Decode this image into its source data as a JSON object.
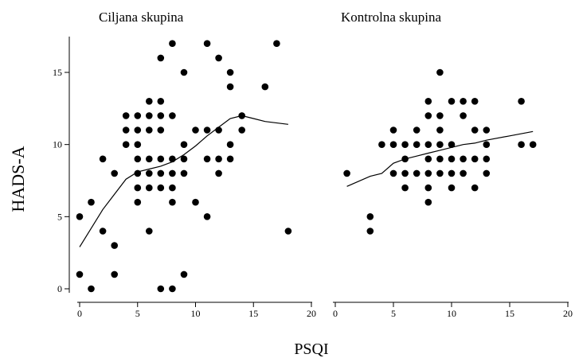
{
  "chart_data": [
    {
      "type": "scatter",
      "title": "Ciljana skupina",
      "xlabel": "PSQI",
      "ylabel": "HADS-A",
      "xlim": [
        0,
        20
      ],
      "ylim": [
        0,
        17
      ],
      "x_ticks": [
        0,
        5,
        10,
        15,
        20
      ],
      "y_ticks": [
        0,
        5,
        10,
        15
      ],
      "points": [
        [
          0,
          5
        ],
        [
          0,
          1
        ],
        [
          1,
          6
        ],
        [
          1,
          0
        ],
        [
          2,
          9
        ],
        [
          2,
          4
        ],
        [
          3,
          8
        ],
        [
          3,
          3
        ],
        [
          3,
          1
        ],
        [
          4,
          12
        ],
        [
          4,
          11
        ],
        [
          4,
          10
        ],
        [
          5,
          12
        ],
        [
          5,
          11
        ],
        [
          5,
          10
        ],
        [
          5,
          9
        ],
        [
          5,
          8
        ],
        [
          5,
          7
        ],
        [
          5,
          6
        ],
        [
          6,
          13
        ],
        [
          6,
          12
        ],
        [
          6,
          11
        ],
        [
          6,
          9
        ],
        [
          6,
          8
        ],
        [
          6,
          7
        ],
        [
          6,
          4
        ],
        [
          7,
          16
        ],
        [
          7,
          13
        ],
        [
          7,
          12
        ],
        [
          7,
          11
        ],
        [
          7,
          9
        ],
        [
          7,
          8
        ],
        [
          7,
          7
        ],
        [
          7,
          0
        ],
        [
          8,
          17
        ],
        [
          8,
          12
        ],
        [
          8,
          9
        ],
        [
          8,
          8
        ],
        [
          8,
          7
        ],
        [
          8,
          6
        ],
        [
          8,
          0
        ],
        [
          9,
          15
        ],
        [
          9,
          10
        ],
        [
          9,
          9
        ],
        [
          9,
          8
        ],
        [
          9,
          1
        ],
        [
          10,
          11
        ],
        [
          10,
          6
        ],
        [
          11,
          17
        ],
        [
          11,
          11
        ],
        [
          11,
          9
        ],
        [
          11,
          5
        ],
        [
          12,
          16
        ],
        [
          12,
          11
        ],
        [
          12,
          9
        ],
        [
          12,
          8
        ],
        [
          13,
          15
        ],
        [
          13,
          14
        ],
        [
          13,
          10
        ],
        [
          13,
          9
        ],
        [
          14,
          12
        ],
        [
          14,
          11
        ],
        [
          16,
          14
        ],
        [
          17,
          17
        ],
        [
          18,
          4
        ]
      ],
      "trend": [
        [
          0,
          2.9
        ],
        [
          2,
          5.5
        ],
        [
          4,
          7.6
        ],
        [
          5,
          8.1
        ],
        [
          6,
          8.3
        ],
        [
          7,
          8.5
        ],
        [
          8,
          8.8
        ],
        [
          9,
          9.3
        ],
        [
          10,
          9.9
        ],
        [
          11,
          10.6
        ],
        [
          12,
          11.2
        ],
        [
          13,
          11.8
        ],
        [
          14,
          12.0
        ],
        [
          15,
          11.8
        ],
        [
          16,
          11.6
        ],
        [
          18,
          11.4
        ]
      ]
    },
    {
      "type": "scatter",
      "title": "Kontrolna skupina",
      "xlabel": "PSQI",
      "ylabel": "HADS-A",
      "xlim": [
        0,
        20
      ],
      "ylim": [
        0,
        17
      ],
      "x_ticks": [
        0,
        5,
        10,
        15,
        20
      ],
      "y_ticks": [
        0,
        5,
        10,
        15
      ],
      "points": [
        [
          1,
          8
        ],
        [
          3,
          5
        ],
        [
          3,
          4
        ],
        [
          4,
          10
        ],
        [
          5,
          11
        ],
        [
          5,
          10
        ],
        [
          5,
          8
        ],
        [
          6,
          10
        ],
        [
          6,
          9
        ],
        [
          6,
          8
        ],
        [
          6,
          7
        ],
        [
          7,
          11
        ],
        [
          7,
          10
        ],
        [
          7,
          8
        ],
        [
          8,
          13
        ],
        [
          8,
          12
        ],
        [
          8,
          10
        ],
        [
          8,
          9
        ],
        [
          8,
          8
        ],
        [
          8,
          7
        ],
        [
          8,
          6
        ],
        [
          9,
          15
        ],
        [
          9,
          12
        ],
        [
          9,
          11
        ],
        [
          9,
          10
        ],
        [
          9,
          9
        ],
        [
          9,
          8
        ],
        [
          10,
          13
        ],
        [
          10,
          10
        ],
        [
          10,
          9
        ],
        [
          10,
          8
        ],
        [
          10,
          7
        ],
        [
          11,
          13
        ],
        [
          11,
          12
        ],
        [
          11,
          9
        ],
        [
          11,
          8
        ],
        [
          12,
          13
        ],
        [
          12,
          11
        ],
        [
          12,
          9
        ],
        [
          12,
          7
        ],
        [
          13,
          11
        ],
        [
          13,
          10
        ],
        [
          13,
          9
        ],
        [
          13,
          8
        ],
        [
          16,
          13
        ],
        [
          16,
          10
        ],
        [
          17,
          10
        ]
      ],
      "trend": [
        [
          1,
          7.1
        ],
        [
          3,
          7.8
        ],
        [
          4,
          8.0
        ],
        [
          5,
          8.7
        ],
        [
          6,
          9.0
        ],
        [
          7,
          9.2
        ],
        [
          8,
          9.4
        ],
        [
          9,
          9.6
        ],
        [
          10,
          9.8
        ],
        [
          11,
          10.0
        ],
        [
          12,
          10.1
        ],
        [
          13,
          10.3
        ],
        [
          15,
          10.6
        ],
        [
          17,
          10.9
        ]
      ]
    }
  ]
}
